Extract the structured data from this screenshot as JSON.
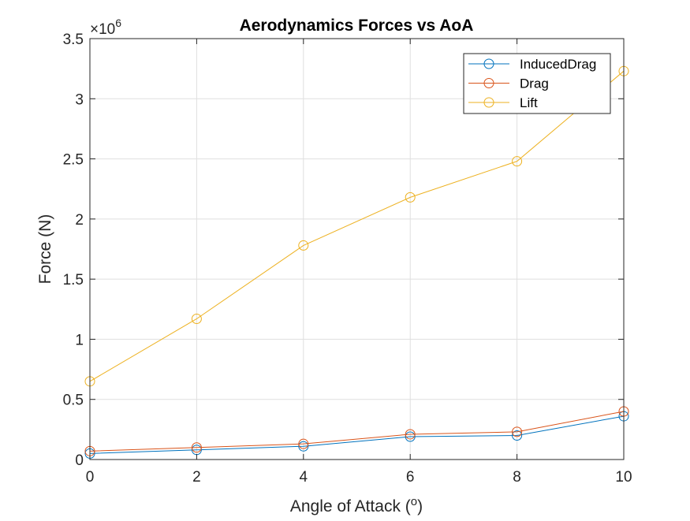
{
  "chart_data": {
    "type": "line",
    "title": "Aerodynamics Forces vs AoA",
    "xlabel": "Angle of Attack (",
    "xlabel_sup": "o",
    "xlabel_end": ")",
    "ylabel": "Force (N)",
    "y_exponent_base": "×10",
    "y_exponent_power": "6",
    "xlim": [
      0,
      10
    ],
    "ylim": [
      0,
      3.5
    ],
    "x_ticks": [
      0,
      2,
      4,
      6,
      8,
      10
    ],
    "x_tick_labels": [
      "0",
      "2",
      "4",
      "6",
      "8",
      "10"
    ],
    "y_ticks": [
      0,
      0.5,
      1,
      1.5,
      2,
      2.5,
      3,
      3.5
    ],
    "y_tick_labels": [
      "0",
      "0.5",
      "1",
      "1.5",
      "2",
      "2.5",
      "3",
      "3.5"
    ],
    "grid": true,
    "legend_position": "top-right",
    "marker": "circle",
    "x": [
      0,
      2,
      4,
      6,
      8,
      10
    ],
    "series": [
      {
        "name": "InducedDrag",
        "color": "#0072BD",
        "values": [
          0.05,
          0.08,
          0.11,
          0.19,
          0.2,
          0.36
        ]
      },
      {
        "name": "Drag",
        "color": "#D95319",
        "values": [
          0.07,
          0.1,
          0.13,
          0.21,
          0.23,
          0.4
        ]
      },
      {
        "name": "Lift",
        "color": "#EDB120",
        "values": [
          0.65,
          1.17,
          1.78,
          2.18,
          2.48,
          3.23
        ]
      }
    ]
  }
}
